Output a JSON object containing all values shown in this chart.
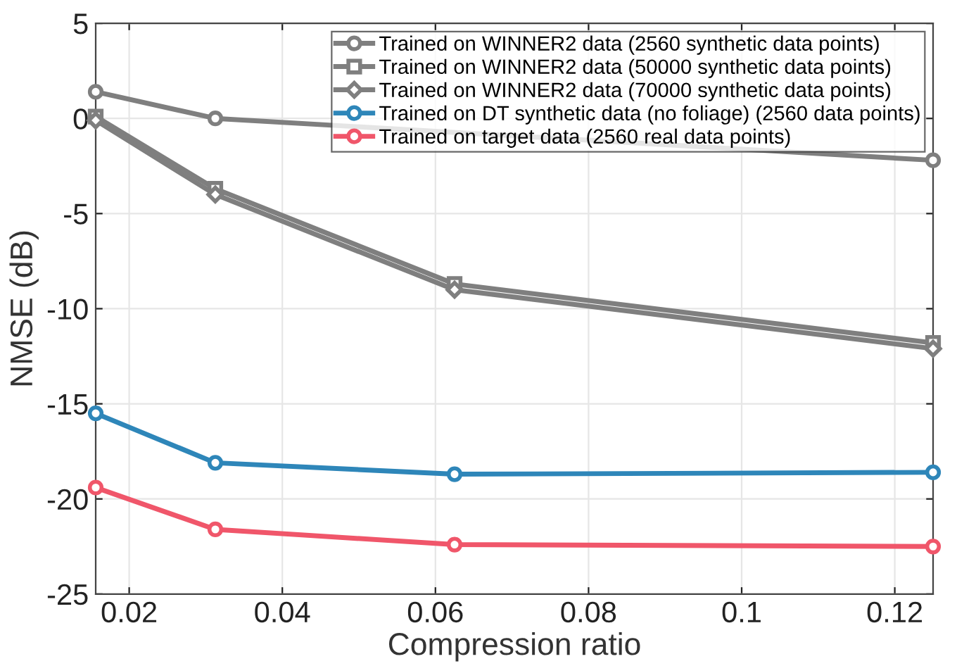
{
  "chart_data": {
    "type": "line",
    "xlabel": "Compression ratio",
    "ylabel": "NMSE (dB)",
    "x": [
      0.015625,
      0.03125,
      0.0625,
      0.125
    ],
    "series": [
      {
        "name": "Trained on WINNER2 data (2560 synthetic data points)",
        "color": "#7f7f7f",
        "marker": "circle",
        "values": [
          1.4,
          0.0,
          null,
          -2.2
        ]
      },
      {
        "name": "Trained on WINNER2 data (50000 synthetic data points)",
        "color": "#7f7f7f",
        "marker": "square",
        "values": [
          0.1,
          -3.7,
          -8.7,
          -11.8
        ]
      },
      {
        "name": "Trained on WINNER2 data (70000 synthetic data points)",
        "color": "#7f7f7f",
        "marker": "diamond",
        "values": [
          -0.1,
          -4.0,
          -9.0,
          -12.1
        ]
      },
      {
        "name": "Trained on DT synthetic data (no foliage) (2560 data points)",
        "color": "#2e86b9",
        "marker": "circle",
        "values": [
          -15.5,
          -18.1,
          -18.7,
          -18.6
        ]
      },
      {
        "name": "Trained on target data (2560 real data points)",
        "color": "#f0566a",
        "marker": "circle",
        "values": [
          -19.4,
          -21.6,
          -22.4,
          -22.5
        ]
      }
    ],
    "xlim": [
      0.015625,
      0.125
    ],
    "xticks": [
      {
        "value": 0.02,
        "label": "0.02"
      },
      {
        "value": 0.04,
        "label": "0.04"
      },
      {
        "value": 0.06,
        "label": "0.06"
      },
      {
        "value": 0.08,
        "label": "0.08"
      },
      {
        "value": 0.1,
        "label": "0.1"
      },
      {
        "value": 0.12,
        "label": "0.12"
      }
    ],
    "ylim": [
      -25,
      5
    ],
    "yticks": [
      -25,
      -20,
      -15,
      -10,
      -5,
      0,
      5
    ],
    "grid": true,
    "legend": "top right",
    "line_style": "solid"
  }
}
